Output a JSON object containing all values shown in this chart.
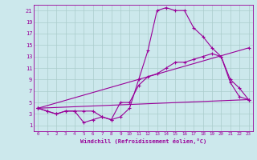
{
  "background_color": "#cce8ec",
  "grid_color": "#aacccc",
  "line_color": "#990099",
  "xlabel": "Windchill (Refroidissement éolien,°C)",
  "xlim": [
    -0.5,
    23.5
  ],
  "ylim": [
    0,
    22
  ],
  "xticks": [
    0,
    1,
    2,
    3,
    4,
    5,
    6,
    7,
    8,
    9,
    10,
    11,
    12,
    13,
    14,
    15,
    16,
    17,
    18,
    19,
    20,
    21,
    22,
    23
  ],
  "yticks": [
    1,
    3,
    5,
    7,
    9,
    11,
    13,
    15,
    17,
    19,
    21
  ],
  "series1_x": [
    0,
    1,
    2,
    3,
    4,
    5,
    6,
    7,
    8,
    9,
    10,
    11,
    12,
    13,
    14,
    15,
    16,
    17,
    18,
    19,
    20,
    21,
    22,
    23
  ],
  "series1_y": [
    4,
    3.5,
    3,
    3.5,
    3.5,
    3.5,
    3.5,
    2.5,
    2,
    2.5,
    4,
    9,
    14,
    21,
    21.5,
    21,
    21,
    18,
    16.5,
    14.5,
    13,
    9,
    7.5,
    5.5
  ],
  "series2_x": [
    0,
    1,
    2,
    3,
    4,
    5,
    6,
    7,
    8,
    9,
    10,
    11,
    12,
    13,
    14,
    15,
    16,
    17,
    18,
    19,
    20,
    21,
    22,
    23
  ],
  "series2_y": [
    4,
    3.5,
    3,
    3.5,
    3.5,
    1.5,
    2,
    2.5,
    2,
    5,
    5,
    8,
    9.5,
    10,
    11,
    12,
    12,
    12.5,
    13,
    13.5,
    13,
    8.5,
    6,
    5.5
  ],
  "series3_x": [
    0,
    23
  ],
  "series3_y": [
    4,
    5.5
  ],
  "series4_x": [
    0,
    23
  ],
  "series4_y": [
    4,
    14.5
  ]
}
